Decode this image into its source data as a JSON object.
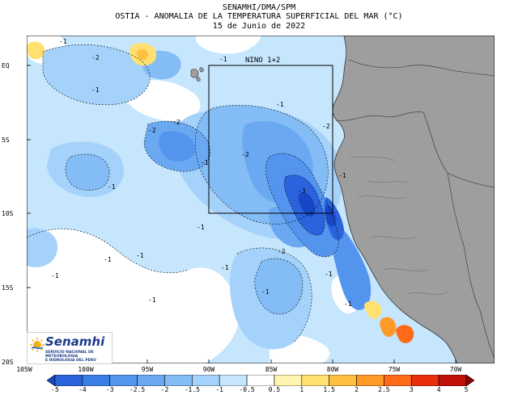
{
  "header": {
    "line1": "SENAMHI/DMA/SPM",
    "line2": "OSTIA - ANOMALIA DE LA TEMPERATURA SUPERFICIAL DEL MAR (°C)",
    "line3": "15 de Junio de 2022"
  },
  "region_box_label": "NINO 1+2",
  "lat_ticks": [
    "EQ",
    "5S",
    "10S",
    "15S",
    "20S"
  ],
  "lon_ticks": [
    "105W",
    "100W",
    "95W",
    "90W",
    "85W",
    "80W",
    "75W",
    "70W"
  ],
  "contour_labels": [
    "-1",
    "-2",
    "-2",
    "-1",
    "-1",
    "-2",
    "-2",
    "-1",
    "-1",
    "-2",
    "-1",
    "-1",
    "-1",
    "-1",
    "-3",
    "-2",
    "-1",
    "-1",
    "-1",
    "-1",
    "-1",
    "-1",
    "-1"
  ],
  "colorbar": {
    "labels": [
      "-5",
      "-4",
      "-3",
      "-2.5",
      "-2",
      "-1.5",
      "-1",
      "-0.5",
      "0.5",
      "1",
      "1.5",
      "2",
      "2.5",
      "3",
      "4",
      "5"
    ],
    "colors": [
      "#1747c4",
      "#2a63dc",
      "#3a7ee8",
      "#5294ee",
      "#6aa8f2",
      "#84bcf5",
      "#a5d2fa",
      "#c6e6fd",
      "#ffffff",
      "#fff4b0",
      "#ffe070",
      "#ffc040",
      "#ff9a28",
      "#ff6a18",
      "#e8300c",
      "#c01008",
      "#900000"
    ]
  },
  "logo": {
    "name": "Senamhi",
    "subtitle_1": "SERVICIO NACIONAL DE METEOROLOGIA",
    "subtitle_2": "E HIDROLOGIA DEL PERU"
  },
  "colors": {
    "land": "#9e9e9e",
    "sea_neutral": "#ffffff"
  }
}
